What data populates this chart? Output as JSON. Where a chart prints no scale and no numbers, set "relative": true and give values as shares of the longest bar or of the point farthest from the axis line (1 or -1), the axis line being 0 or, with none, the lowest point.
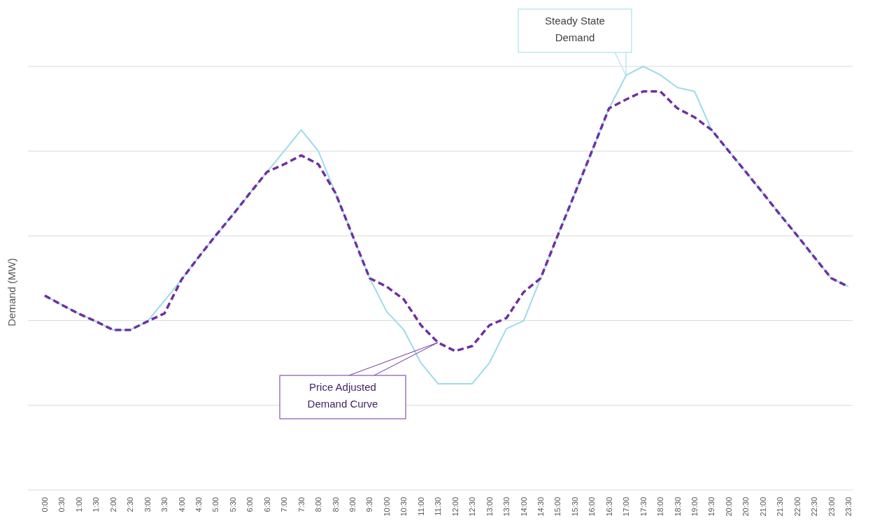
{
  "chart_data": {
    "type": "line",
    "relative": true,
    "ylabel": "Demand (MW)",
    "grid": "y",
    "legend": false,
    "marker": "none",
    "categories": [
      "0:00",
      "0:30",
      "1:00",
      "1:30",
      "2:00",
      "2:30",
      "3:00",
      "3:30",
      "4:00",
      "4:30",
      "5:00",
      "5:30",
      "6:00",
      "6:30",
      "7:00",
      "7:30",
      "8:00",
      "8:30",
      "9:00",
      "9:30",
      "10:00",
      "10:30",
      "11:00",
      "11:30",
      "12:00",
      "12:30",
      "13:00",
      "13:30",
      "14:00",
      "14:30",
      "15:00",
      "15:30",
      "16:00",
      "16:30",
      "17:00",
      "17:30",
      "18:00",
      "18:30",
      "19:00",
      "19:30",
      "20:00",
      "20:30",
      "21:00",
      "21:30",
      "22:00",
      "22:30",
      "23:00",
      "23:30"
    ],
    "series": [
      {
        "color": "#9ddbea",
        "line_style": "solid",
        "values": [
          0.459,
          0.437,
          0.416,
          0.398,
          0.378,
          0.378,
          0.398,
          0.447,
          0.497,
          0.55,
          0.601,
          0.65,
          0.701,
          0.751,
          0.8,
          0.85,
          0.8,
          0.701,
          0.601,
          0.5,
          0.421,
          0.378,
          0.3,
          0.251,
          0.251,
          0.251,
          0.3,
          0.381,
          0.399,
          0.5,
          0.601,
          0.7,
          0.8,
          0.901,
          0.979,
          1,
          0.98,
          0.95,
          0.941,
          0.85,
          0.8,
          0.751,
          0.701,
          0.65,
          0.601,
          0.55,
          0.5,
          0.48
        ]
      },
      {
        "color": "#7030a0",
        "line_style": "dashed",
        "values": [
          0.459,
          0.437,
          0.416,
          0.398,
          0.378,
          0.378,
          0.398,
          0.417,
          0.497,
          0.55,
          0.601,
          0.65,
          0.701,
          0.751,
          0.769,
          0.79,
          0.769,
          0.701,
          0.601,
          0.5,
          0.48,
          0.45,
          0.389,
          0.348,
          0.328,
          0.34,
          0.389,
          0.406,
          0.467,
          0.5,
          0.601,
          0.7,
          0.8,
          0.901,
          0.922,
          0.941,
          0.941,
          0.901,
          0.88,
          0.85,
          0.8,
          0.751,
          0.701,
          0.65,
          0.601,
          0.55,
          0.5,
          0.48
        ]
      }
    ],
    "annotations": [
      "Steady State Demand",
      "Price Adjusted Demand Curve"
    ]
  }
}
